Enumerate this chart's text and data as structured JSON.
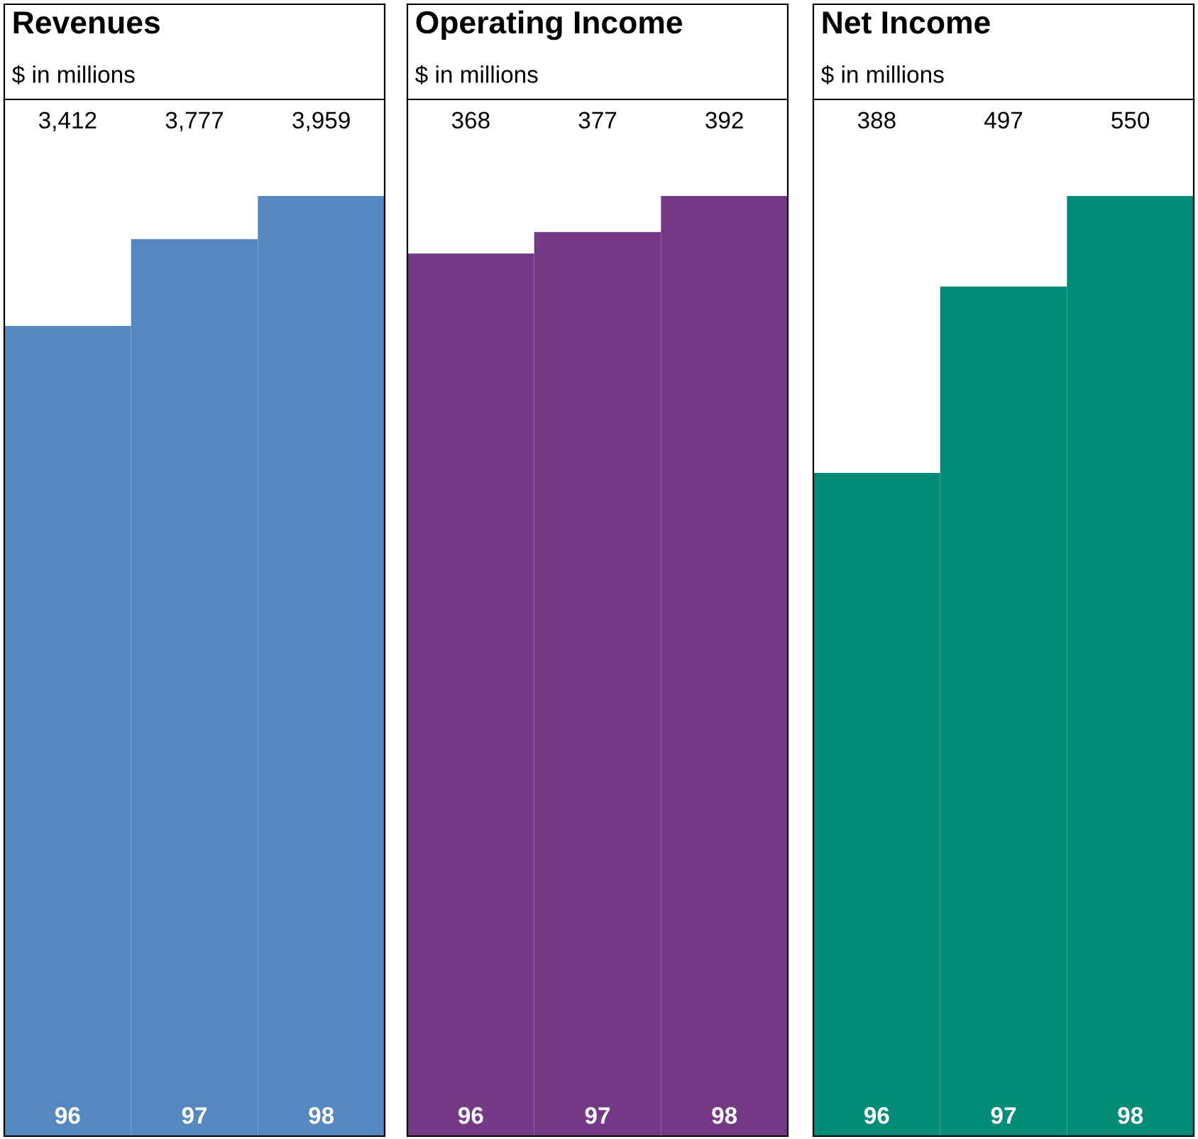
{
  "chart_data": [
    {
      "type": "bar",
      "title": "Revenues",
      "subtitle": "$ in millions",
      "categories": [
        "96",
        "97",
        "98"
      ],
      "values": [
        3412,
        3777,
        3959
      ],
      "value_labels": [
        "3,412",
        "3,777",
        "3,959"
      ],
      "color": "#5588c0"
    },
    {
      "type": "bar",
      "title": "Operating Income",
      "subtitle": "$ in millions",
      "categories": [
        "96",
        "97",
        "98"
      ],
      "values": [
        368,
        377,
        392
      ],
      "value_labels": [
        "368",
        "377",
        "392"
      ],
      "color": "#733984"
    },
    {
      "type": "bar",
      "title": "Net Income",
      "subtitle": "$ in millions",
      "categories": [
        "96",
        "97",
        "98"
      ],
      "values": [
        388,
        497,
        550
      ],
      "value_labels": [
        "388",
        "497",
        "550"
      ],
      "color": "#038b7a"
    }
  ]
}
